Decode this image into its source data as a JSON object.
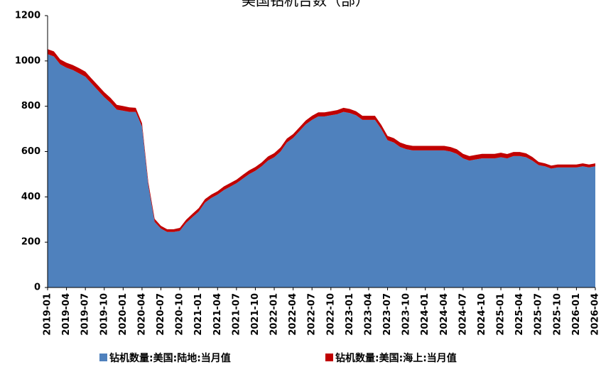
{
  "chart_data": {
    "type": "stacked_area",
    "title": "美国钻机台数（部）",
    "categories": [
      "2019-01",
      null,
      null,
      "2019-04",
      null,
      null,
      "2019-07",
      null,
      null,
      "2019-10",
      null,
      null,
      "2020-01",
      null,
      null,
      "2020-04",
      null,
      null,
      "2020-07",
      null,
      null,
      "2020-10",
      null,
      null,
      "2021-01",
      null,
      null,
      "2021-04",
      null,
      null,
      "2021-07",
      null,
      null,
      "2021-10",
      null,
      null,
      "2022-01",
      null,
      null,
      "2022-04",
      null,
      null,
      "2022-07",
      null,
      null,
      "2022-10",
      null,
      null,
      "2023-01",
      null,
      null,
      "2023-04",
      null,
      null,
      "2023-07",
      null,
      null,
      "2023-10",
      null,
      null,
      "2024-01",
      null,
      null,
      "2024-04",
      null,
      null,
      "2024-07",
      null,
      null,
      "2024-10",
      null,
      null,
      "2025-01",
      null,
      null,
      "2025-04",
      null,
      null,
      "2025-07",
      null,
      null,
      "2025-10",
      null,
      null,
      "2026-01",
      null,
      null,
      "2026-04"
    ],
    "series": [
      {
        "name": "钻机数量:美国:陆地:当月值",
        "color": "#4f81bd",
        "values": [
          1030,
          1020,
          985,
          970,
          960,
          945,
          930,
          900,
          870,
          840,
          815,
          785,
          780,
          775,
          775,
          710,
          450,
          290,
          260,
          245,
          245,
          250,
          285,
          310,
          335,
          375,
          395,
          410,
          430,
          445,
          460,
          480,
          500,
          515,
          535,
          560,
          575,
          600,
          640,
          660,
          690,
          720,
          740,
          755,
          755,
          760,
          765,
          775,
          770,
          760,
          740,
          740,
          740,
          700,
          650,
          640,
          620,
          610,
          605,
          605,
          605,
          605,
          605,
          605,
          600,
          590,
          570,
          560,
          565,
          570,
          570,
          570,
          575,
          570,
          580,
          580,
          575,
          560,
          540,
          535,
          525,
          530,
          530,
          530,
          530,
          535,
          530,
          535
        ]
      },
      {
        "name": "钻机数量:美国:海上:当月值",
        "color": "#c00000",
        "values": [
          22,
          22,
          22,
          22,
          22,
          23,
          23,
          22,
          22,
          22,
          22,
          21,
          21,
          20,
          18,
          15,
          14,
          13,
          12,
          12,
          12,
          13,
          14,
          15,
          15,
          15,
          15,
          15,
          16,
          16,
          16,
          17,
          17,
          17,
          17,
          18,
          18,
          18,
          17,
          17,
          17,
          17,
          18,
          18,
          18,
          18,
          18,
          18,
          18,
          18,
          18,
          18,
          18,
          18,
          19,
          19,
          20,
          20,
          20,
          20,
          20,
          20,
          20,
          20,
          20,
          20,
          20,
          20,
          20,
          20,
          20,
          20,
          20,
          19,
          18,
          18,
          17,
          16,
          14,
          13,
          13,
          13,
          13,
          13,
          13,
          13,
          13,
          13
        ]
      }
    ],
    "ylim": [
      0,
      1200
    ],
    "yticks": [
      0,
      200,
      400,
      600,
      800,
      1000,
      1200
    ],
    "legend": "bottom"
  }
}
